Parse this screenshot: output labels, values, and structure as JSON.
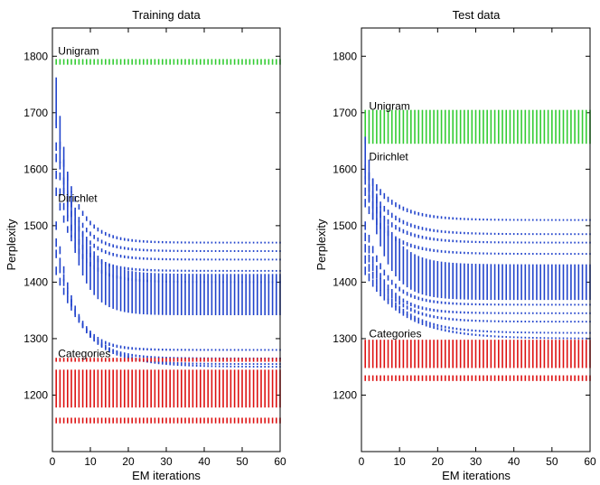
{
  "chart_data": [
    {
      "type": "errorbar",
      "title": "Training data",
      "xlabel": "EM iterations",
      "ylabel": "Perplexity",
      "xlim": [
        0,
        60
      ],
      "ylim": [
        1100,
        1850
      ],
      "xticks": [
        "0",
        "10",
        "20",
        "30",
        "40",
        "50",
        "60"
      ],
      "yticks": [
        "1200",
        "1300",
        "1400",
        "1500",
        "1600",
        "1700",
        "1800"
      ],
      "colors": {
        "unigram": "#33cc33",
        "dirichlet": "#2244cc",
        "categories": "#dd1111"
      },
      "annotations": [
        {
          "text": "Unigram",
          "x": 1.5,
          "y": 1803
        },
        {
          "text": "Dirichlet",
          "x": 1.5,
          "y": 1542
        },
        {
          "text": "Categories",
          "x": 1.5,
          "y": 1267
        }
      ],
      "series": [
        {
          "name": "Unigram",
          "group": "unigram",
          "type": "band",
          "low": 1785,
          "high": 1795,
          "center": 1790
        },
        {
          "name": "Dirichlet center",
          "group": "dirichlet",
          "type": "curve",
          "start": 1720,
          "end": 1378,
          "rate": 0.22,
          "spread": 35
        },
        {
          "name": "Dirichlet",
          "group": "dirichlet",
          "type": "curve",
          "start": 1680,
          "end": 1470,
          "rate": 0.2
        },
        {
          "name": "Dirichlet",
          "group": "dirichlet",
          "type": "curve",
          "start": 1640,
          "end": 1455,
          "rate": 0.2
        },
        {
          "name": "Dirichlet",
          "group": "dirichlet",
          "type": "curve",
          "start": 1620,
          "end": 1440,
          "rate": 0.2
        },
        {
          "name": "Dirichlet",
          "group": "dirichlet",
          "type": "curve",
          "start": 1590,
          "end": 1420,
          "rate": 0.2
        },
        {
          "name": "Dirichlet",
          "group": "dirichlet",
          "type": "curve",
          "start": 1560,
          "end": 1400,
          "rate": 0.18
        },
        {
          "name": "Dirichlet",
          "group": "dirichlet",
          "type": "curve",
          "start": 1500,
          "end": 1280,
          "rate": 0.22
        },
        {
          "name": "Dirichlet",
          "group": "dirichlet",
          "type": "curve",
          "start": 1470,
          "end": 1265,
          "rate": 0.18
        },
        {
          "name": "Dirichlet",
          "group": "dirichlet",
          "type": "curve",
          "start": 1450,
          "end": 1255,
          "rate": 0.15
        },
        {
          "name": "Dirichlet",
          "group": "dirichlet",
          "type": "curve",
          "start": 1420,
          "end": 1250,
          "rate": 0.12
        },
        {
          "name": "Categories",
          "group": "categories",
          "type": "band",
          "low": 1178,
          "high": 1245,
          "center": 1212
        },
        {
          "name": "Categories",
          "group": "categories",
          "type": "band",
          "low": 1261,
          "high": 1264,
          "center": 1262
        },
        {
          "name": "Categories",
          "group": "categories",
          "type": "band",
          "low": 1150,
          "high": 1160,
          "center": 1155
        }
      ]
    },
    {
      "type": "errorbar",
      "title": "Test data",
      "xlabel": "EM iterations",
      "ylabel": "Perplexity",
      "xlim": [
        0,
        60
      ],
      "ylim": [
        1100,
        1850
      ],
      "xticks": [
        "0",
        "10",
        "20",
        "30",
        "40",
        "50",
        "60"
      ],
      "yticks": [
        "1200",
        "1300",
        "1400",
        "1500",
        "1600",
        "1700",
        "1800"
      ],
      "colors": {
        "unigram": "#33cc33",
        "dirichlet": "#2244cc",
        "categories": "#dd1111"
      },
      "annotations": [
        {
          "text": "Unigram",
          "x": 2.0,
          "y": 1705
        },
        {
          "text": "Dirichlet",
          "x": 2.0,
          "y": 1616
        },
        {
          "text": "Categories",
          "x": 2.0,
          "y": 1302
        }
      ],
      "series": [
        {
          "name": "Unigram",
          "group": "unigram",
          "type": "band",
          "low": 1645,
          "high": 1705,
          "center": 1675
        },
        {
          "name": "Dirichlet center",
          "group": "dirichlet",
          "type": "curve",
          "start": 1620,
          "end": 1400,
          "rate": 0.2,
          "spread": 30
        },
        {
          "name": "Dirichlet",
          "group": "dirichlet",
          "type": "curve",
          "start": 1600,
          "end": 1510,
          "rate": 0.15
        },
        {
          "name": "Dirichlet",
          "group": "dirichlet",
          "type": "curve",
          "start": 1580,
          "end": 1485,
          "rate": 0.15
        },
        {
          "name": "Dirichlet",
          "group": "dirichlet",
          "type": "curve",
          "start": 1560,
          "end": 1470,
          "rate": 0.15
        },
        {
          "name": "Dirichlet",
          "group": "dirichlet",
          "type": "curve",
          "start": 1540,
          "end": 1450,
          "rate": 0.15
        },
        {
          "name": "Dirichlet",
          "group": "dirichlet",
          "type": "curve",
          "start": 1500,
          "end": 1360,
          "rate": 0.18
        },
        {
          "name": "Dirichlet",
          "group": "dirichlet",
          "type": "curve",
          "start": 1480,
          "end": 1345,
          "rate": 0.18
        },
        {
          "name": "Dirichlet",
          "group": "dirichlet",
          "type": "curve",
          "start": 1460,
          "end": 1330,
          "rate": 0.15
        },
        {
          "name": "Dirichlet",
          "group": "dirichlet",
          "type": "curve",
          "start": 1440,
          "end": 1310,
          "rate": 0.12
        },
        {
          "name": "Dirichlet",
          "group": "dirichlet",
          "type": "curve",
          "start": 1420,
          "end": 1300,
          "rate": 0.1
        },
        {
          "name": "Categories",
          "group": "categories",
          "type": "band",
          "low": 1248,
          "high": 1298,
          "center": 1273
        },
        {
          "name": "Categories",
          "group": "categories",
          "type": "band",
          "low": 1225,
          "high": 1235,
          "center": 1230
        }
      ]
    }
  ]
}
